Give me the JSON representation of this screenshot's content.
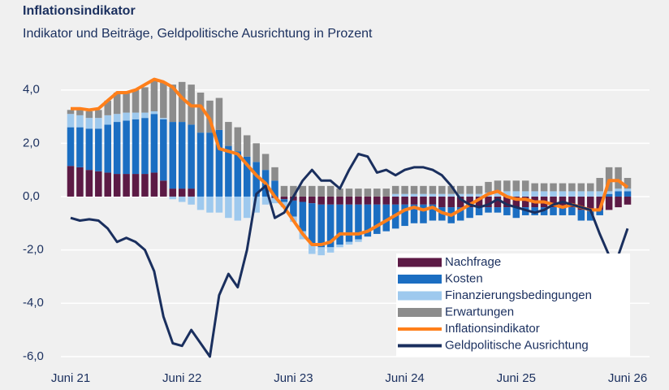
{
  "chart_data": {
    "type": "bar",
    "stacked": true,
    "title": "Inflationsindikator",
    "subtitle": "Indikator und Beiträge, Geldpolitische Ausrichtung in Prozent",
    "categories": [
      "Juni 21",
      null,
      null,
      null,
      null,
      null,
      null,
      null,
      null,
      null,
      null,
      null,
      "Juni 22",
      null,
      null,
      null,
      null,
      null,
      null,
      null,
      null,
      null,
      null,
      null,
      "Juni 23",
      null,
      null,
      null,
      null,
      null,
      null,
      null,
      null,
      null,
      null,
      null,
      "Juni 24",
      null,
      null,
      null,
      null,
      null,
      null,
      null,
      null,
      null,
      null,
      null,
      "Juni 25",
      null,
      null,
      null,
      null,
      null,
      null,
      null,
      null,
      null,
      null,
      null,
      "Juni 26"
    ],
    "ylim": [
      -6.4,
      4.6
    ],
    "yticks": [
      {
        "value": -6,
        "label": "-6,0"
      },
      {
        "value": -4,
        "label": "-4,0"
      },
      {
        "value": -2,
        "label": "-2,0"
      },
      {
        "value": 0,
        "label": "0,0"
      },
      {
        "value": 2,
        "label": "2,0"
      },
      {
        "value": 4,
        "label": "4,0"
      }
    ],
    "grid": true,
    "legend": "lower right",
    "series": [
      {
        "name": "Nachfrage",
        "type": "bar",
        "color": "#5c1a45",
        "values": [
          1.15,
          1.1,
          1.0,
          0.95,
          0.9,
          0.85,
          0.85,
          0.85,
          0.85,
          0.9,
          0.6,
          0.3,
          0.3,
          0.3,
          0,
          0,
          0,
          0,
          0,
          0,
          0,
          0,
          -0.05,
          -0.1,
          -0.15,
          -0.2,
          -0.25,
          -0.3,
          -0.3,
          -0.3,
          -0.3,
          -0.3,
          -0.3,
          -0.3,
          -0.3,
          -0.3,
          -0.3,
          -0.3,
          -0.3,
          -0.3,
          -0.4,
          -0.4,
          -0.4,
          -0.4,
          -0.4,
          -0.4,
          -0.4,
          -0.4,
          -0.4,
          -0.4,
          -0.4,
          -0.4,
          -0.4,
          -0.4,
          -0.4,
          -0.5,
          -0.5,
          -0.5,
          -0.5,
          -0.4,
          -0.3
        ]
      },
      {
        "name": "Kosten",
        "type": "bar",
        "color": "#1b6ec2",
        "values": [
          1.45,
          1.5,
          1.55,
          1.6,
          1.8,
          1.95,
          2.0,
          2.05,
          2.1,
          2.2,
          2.3,
          2.5,
          2.5,
          2.4,
          2.4,
          2.4,
          2.5,
          1.9,
          1.7,
          1.5,
          1.3,
          1.0,
          0.6,
          -0.1,
          -0.6,
          -1.1,
          -1.5,
          -1.6,
          -1.6,
          -1.5,
          -1.4,
          -1.3,
          -1.2,
          -1.1,
          -1.0,
          -0.9,
          -0.8,
          -0.7,
          -0.7,
          -0.6,
          -0.5,
          -0.6,
          -0.5,
          -0.4,
          -0.3,
          -0.2,
          -0.2,
          -0.3,
          -0.4,
          -0.3,
          -0.3,
          -0.3,
          -0.3,
          -0.3,
          -0.3,
          -0.4,
          -0.4,
          -0.2,
          0.1,
          0.2,
          0.2
        ]
      },
      {
        "name": "Finanzierungsbedingungen",
        "type": "bar",
        "color": "#9ec9ee",
        "values": [
          0.5,
          0.45,
          0.4,
          0.4,
          0.35,
          0.3,
          0.3,
          0.25,
          0.2,
          0.1,
          0.05,
          -0.1,
          -0.2,
          -0.3,
          -0.5,
          -0.6,
          -0.6,
          -0.8,
          -0.9,
          -0.8,
          -0.6,
          -0.3,
          -0.2,
          -0.2,
          -0.2,
          -0.3,
          -0.4,
          -0.3,
          -0.2,
          -0.1,
          -0.1,
          -0.1,
          0,
          0,
          0,
          0.1,
          0.1,
          0.1,
          0.1,
          0.1,
          0.1,
          0.1,
          0.1,
          0.1,
          0.1,
          0.15,
          0.2,
          0.2,
          0.2,
          0.2,
          0.2,
          0.2,
          0.2,
          0.2,
          0.2,
          0.2,
          0.2,
          0.2,
          0.1,
          0.1,
          0.1
        ]
      },
      {
        "name": "Erwartungen",
        "type": "bar",
        "color": "#8c8c8c",
        "values": [
          0.15,
          0.2,
          0.25,
          0.3,
          0.55,
          0.8,
          0.8,
          0.85,
          0.95,
          1.2,
          1.35,
          1.4,
          1.5,
          1.5,
          1.5,
          1.2,
          1.2,
          0.9,
          0.9,
          0.8,
          0.7,
          0.6,
          0.5,
          0.4,
          0.4,
          0.4,
          0.4,
          0.4,
          0.4,
          0.3,
          0.3,
          0.3,
          0.3,
          0.3,
          0.3,
          0.3,
          0.3,
          0.3,
          0.3,
          0.3,
          0.3,
          0.3,
          0.3,
          0.3,
          0.3,
          0.4,
          0.4,
          0.4,
          0.4,
          0.4,
          0.3,
          0.3,
          0.3,
          0.3,
          0.3,
          0.3,
          0.3,
          0.5,
          0.9,
          0.8,
          0.4
        ]
      },
      {
        "name": "Inflationsindikator",
        "type": "line",
        "color": "#ff7f1a",
        "values": [
          3.3,
          3.3,
          3.25,
          3.3,
          3.6,
          3.9,
          3.9,
          4.0,
          4.2,
          4.4,
          4.3,
          4.1,
          3.7,
          3.4,
          3.4,
          2.9,
          1.8,
          1.7,
          1.6,
          1.2,
          0.8,
          0.5,
          0.0,
          -0.4,
          -0.9,
          -1.4,
          -1.8,
          -1.8,
          -1.7,
          -1.4,
          -1.4,
          -1.4,
          -1.3,
          -1.1,
          -0.9,
          -0.7,
          -0.5,
          -0.4,
          -0.5,
          -0.4,
          -0.6,
          -0.7,
          -0.5,
          -0.3,
          -0.1,
          0.1,
          0.2,
          0.0,
          -0.1,
          -0.1,
          -0.2,
          -0.2,
          -0.3,
          -0.4,
          -0.3,
          -0.4,
          -0.5,
          -0.5,
          0.6,
          0.6,
          0.35
        ]
      },
      {
        "name": "Geldpolitische Ausrichtung",
        "type": "line",
        "color": "#1a2f5e",
        "values": [
          -0.8,
          -0.9,
          -0.85,
          -0.9,
          -1.2,
          -1.7,
          -1.55,
          -1.7,
          -2.0,
          -2.8,
          -4.5,
          -5.5,
          -5.6,
          -5.0,
          -5.5,
          -6.0,
          -3.7,
          -2.9,
          -3.4,
          -2.0,
          0.1,
          0.4,
          -0.8,
          -0.6,
          0.0,
          0.6,
          1.0,
          0.6,
          0.6,
          0.3,
          1.0,
          1.6,
          1.5,
          0.9,
          1.0,
          0.8,
          1.0,
          1.1,
          1.1,
          1.0,
          0.8,
          0.4,
          -0.1,
          -0.3,
          -0.4,
          -0.3,
          -0.1,
          -0.3,
          -0.4,
          -0.5,
          -0.6,
          -0.5,
          -0.3,
          -0.2,
          -0.3,
          -0.4,
          -0.5,
          -1.4,
          -2.2,
          -2.2,
          -1.2
        ]
      }
    ]
  }
}
